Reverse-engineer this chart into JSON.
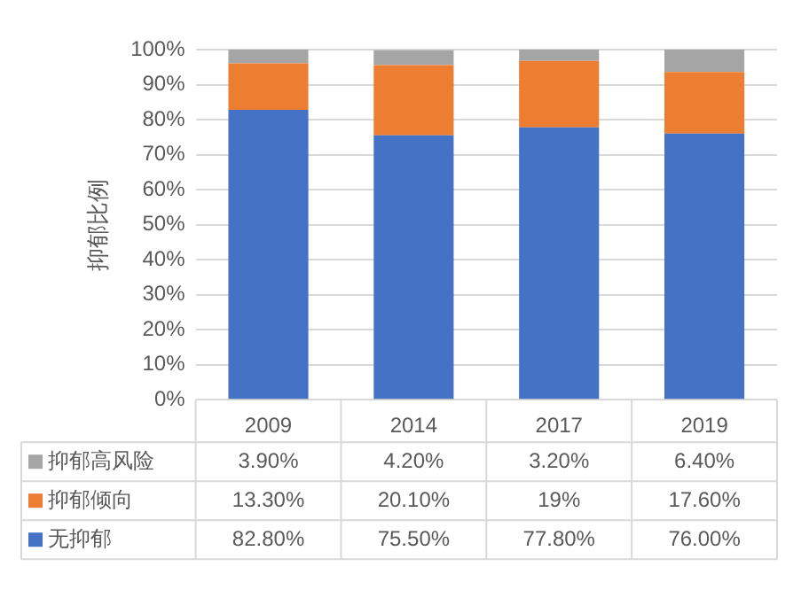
{
  "chart_data": {
    "type": "bar",
    "stacked": true,
    "ylabel": "抑郁比例",
    "categories": [
      "2009",
      "2014",
      "2017",
      "2019"
    ],
    "series": [
      {
        "name": "无抑郁",
        "color": "#4472c4",
        "values": [
          82.8,
          75.5,
          77.8,
          76.0
        ],
        "value_labels": [
          "82.80%",
          "75.50%",
          "77.80%",
          "76.00%"
        ]
      },
      {
        "name": "抑郁倾向",
        "color": "#ed7d31",
        "values": [
          13.3,
          20.1,
          19,
          17.6
        ],
        "value_labels": [
          "13.30%",
          "20.10%",
          "19%",
          "17.60%"
        ]
      },
      {
        "name": "抑郁高风险",
        "color": "#a5a5a5",
        "values": [
          3.9,
          4.2,
          3.2,
          6.4
        ],
        "value_labels": [
          "3.90%",
          "4.20%",
          "3.20%",
          "6.40%"
        ]
      }
    ],
    "ylim": [
      0,
      100
    ],
    "yticks": [
      {
        "value": 0,
        "label": "0%"
      },
      {
        "value": 10,
        "label": "10%"
      },
      {
        "value": 20,
        "label": "20%"
      },
      {
        "value": 30,
        "label": "30%"
      },
      {
        "value": 40,
        "label": "40%"
      },
      {
        "value": 50,
        "label": "50%"
      },
      {
        "value": 60,
        "label": "60%"
      },
      {
        "value": 70,
        "label": "70%"
      },
      {
        "value": 80,
        "label": "80%"
      },
      {
        "value": 90,
        "label": "90%"
      },
      {
        "value": 100,
        "label": "100%"
      }
    ],
    "grid": "y",
    "legend": "bottom"
  }
}
